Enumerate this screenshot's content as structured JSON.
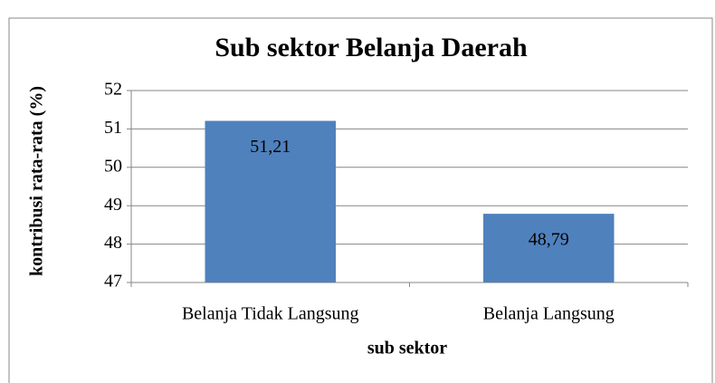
{
  "chart_data": {
    "type": "bar",
    "title": "Sub sektor Belanja Daerah",
    "xlabel": "sub sektor",
    "ylabel": "kontribusi rata-rata (%)",
    "categories": [
      "Belanja Tidak Langsung",
      "Belanja Langsung"
    ],
    "values": [
      51.21,
      48.79
    ],
    "value_labels": [
      "51,21",
      "48,79"
    ],
    "color": "#4f81bd",
    "ylim": [
      47,
      52
    ],
    "yticks": [
      47,
      48,
      49,
      50,
      51,
      52
    ],
    "grid": true
  }
}
